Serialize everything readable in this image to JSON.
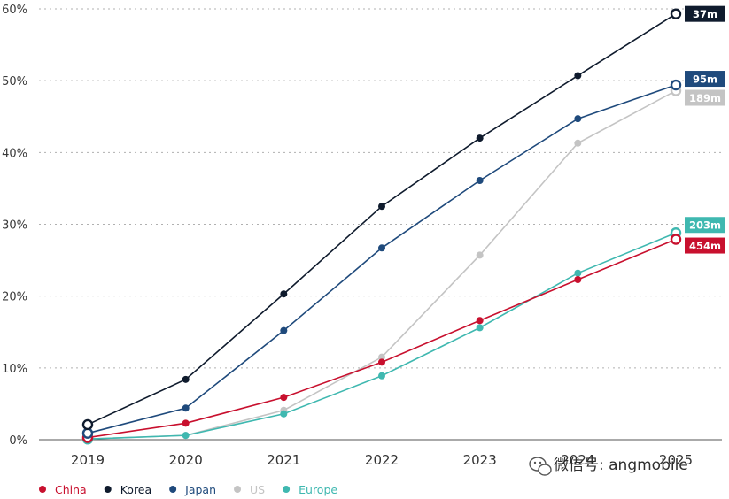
{
  "chart_data": {
    "type": "line",
    "x": [
      "2019",
      "2020",
      "2021",
      "2022",
      "2023",
      "2024",
      "2025"
    ],
    "ylim": [
      0,
      60
    ],
    "yticks": [
      0,
      10,
      20,
      30,
      40,
      50,
      60
    ],
    "ytick_labels": [
      "0%",
      "10%",
      "20%",
      "30%",
      "40%",
      "50%",
      "60%"
    ],
    "grid": true,
    "legend_position": "bottom-left",
    "series": [
      {
        "name": "China",
        "color": "#c8102e",
        "values": [
          0.3,
          2.3,
          5.9,
          10.8,
          16.6,
          22.3,
          27.9
        ],
        "end_label": "454m"
      },
      {
        "name": "Korea",
        "color": "#0f1b2d",
        "values": [
          2.1,
          8.4,
          20.3,
          32.5,
          42.0,
          50.7,
          59.3
        ],
        "end_label": "37m"
      },
      {
        "name": "Japan",
        "color": "#1f4a7c",
        "values": [
          0.9,
          4.4,
          15.2,
          26.7,
          36.1,
          44.7,
          49.4
        ],
        "end_label": "95m"
      },
      {
        "name": "US",
        "color": "#c4c4c4",
        "values": [
          0.1,
          0.6,
          4.1,
          11.5,
          25.7,
          41.3,
          48.6
        ],
        "end_label": "189m"
      },
      {
        "name": "Europe",
        "color": "#3fb8b0",
        "values": [
          0.1,
          0.6,
          3.6,
          8.9,
          15.6,
          23.2,
          28.8
        ],
        "end_label": "203m"
      }
    ]
  },
  "watermark": {
    "text": "微信号: angmobile",
    "icon": "wechat-icon"
  }
}
